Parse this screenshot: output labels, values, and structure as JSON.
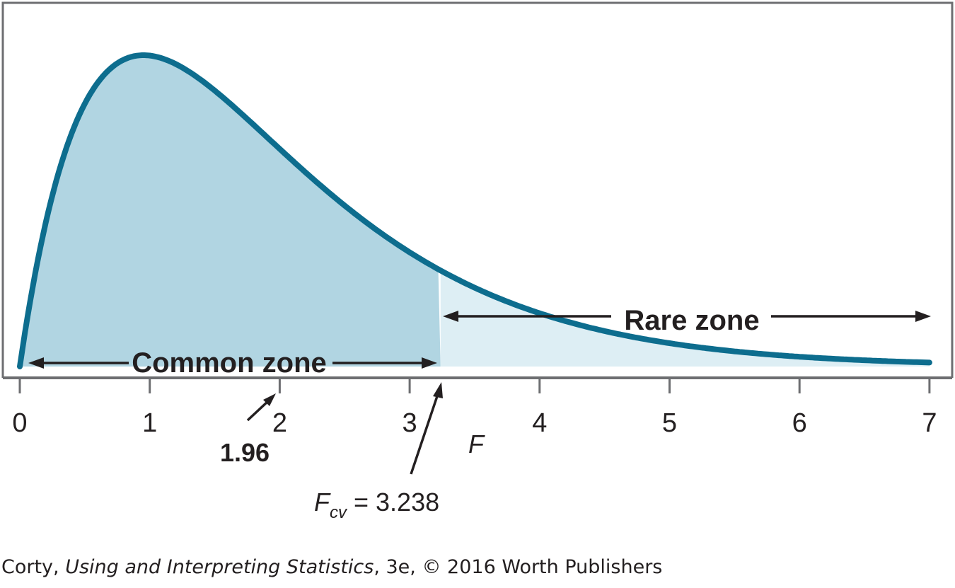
{
  "chart_data": {
    "type": "area",
    "distribution": "F",
    "x_axis": {
      "label": "F",
      "range": [
        0,
        7
      ],
      "ticks": [
        "0",
        "1",
        "2",
        "3",
        "4",
        "5",
        "6",
        "7"
      ]
    },
    "critical_value": {
      "value": 3.238,
      "label_main": "F",
      "label_sub": "cv",
      "label_rest": " = 3.238"
    },
    "observed_value": {
      "value": 1.96,
      "label": "1.96"
    },
    "zones": {
      "common": {
        "label": "Common zone",
        "from": 0,
        "to": 3.238
      },
      "rare": {
        "label": "Rare zone",
        "from": 3.238,
        "to": 7
      }
    },
    "colors": {
      "curve": "#0d6d8e",
      "common_fill": "#b1d5e2",
      "rare_fill": "#ddeef4",
      "frame": "#6d6e71",
      "text": "#231f20"
    }
  },
  "credit": {
    "author": "Corty, ",
    "book_title": "Using and Interpreting Statistics",
    "edition_rest": ", 3e, © 2016 Worth Publishers"
  }
}
